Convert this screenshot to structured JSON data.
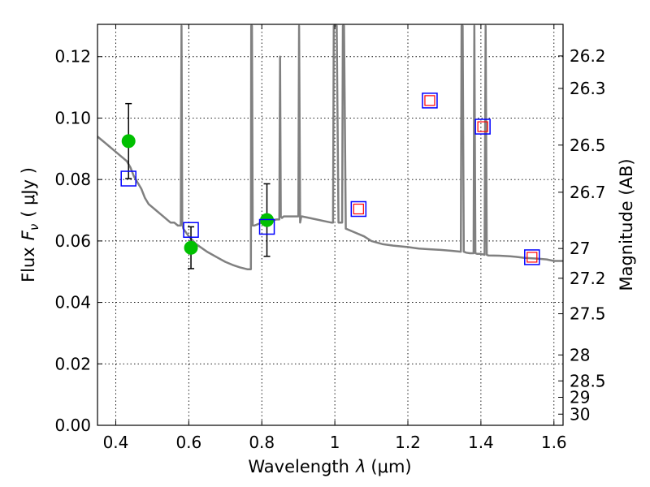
{
  "chart_data": {
    "type": "scatter",
    "xlabel": "Wavelength",
    "xlabel_symbol": "λ",
    "xlabel_unit": "(μm)",
    "ylabel": "Flux",
    "ylabel_symbol": "F",
    "ylabel_subscript": "ν",
    "ylabel_unit": "( μJy )",
    "y2label": "Magnitude (AB)",
    "xlim": [
      0.35,
      1.625
    ],
    "ylim": [
      0.0,
      0.1305
    ],
    "grid": true,
    "xticks": [
      {
        "value": 0.4,
        "label": "0.4"
      },
      {
        "value": 0.6,
        "label": "0.6"
      },
      {
        "value": 0.8,
        "label": "0.8"
      },
      {
        "value": 1.0,
        "label": "1"
      },
      {
        "value": 1.2,
        "label": "1.2"
      },
      {
        "value": 1.4,
        "label": "1.4"
      },
      {
        "value": 1.6,
        "label": "1.6"
      }
    ],
    "yticks": [
      {
        "value": 0.0,
        "label": "0.00"
      },
      {
        "value": 0.02,
        "label": "0.02"
      },
      {
        "value": 0.04,
        "label": "0.04"
      },
      {
        "value": 0.06,
        "label": "0.06"
      },
      {
        "value": 0.08,
        "label": "0.08"
      },
      {
        "value": 0.1,
        "label": "0.10"
      },
      {
        "value": 0.12,
        "label": "0.12"
      }
    ],
    "y2ticks": [
      {
        "value": 26.2,
        "label": "26.2"
      },
      {
        "value": 26.3,
        "label": "26.3"
      },
      {
        "value": 26.5,
        "label": "26.5"
      },
      {
        "value": 26.7,
        "label": "26.7"
      },
      {
        "value": 27.0,
        "label": "27"
      },
      {
        "value": 27.2,
        "label": "27.2"
      },
      {
        "value": 27.5,
        "label": "27.5"
      },
      {
        "value": 28.0,
        "label": "28"
      },
      {
        "value": 28.5,
        "label": "28.5"
      },
      {
        "value": 29.0,
        "label": "29"
      },
      {
        "value": 30.0,
        "label": "30"
      }
    ],
    "series": [
      {
        "name": "SED model",
        "kind": "line",
        "color": "#808080",
        "x": [
          0.35,
          0.36,
          0.37,
          0.38,
          0.39,
          0.4,
          0.41,
          0.42,
          0.43,
          0.44,
          0.45,
          0.46,
          0.47,
          0.48,
          0.49,
          0.5,
          0.51,
          0.52,
          0.53,
          0.54,
          0.55,
          0.56,
          0.57,
          0.578,
          0.58,
          0.582,
          0.585,
          0.6,
          0.62,
          0.65,
          0.68,
          0.7,
          0.72,
          0.74,
          0.76,
          0.77,
          0.771,
          0.773,
          0.775,
          0.78,
          0.8,
          0.82,
          0.84,
          0.848,
          0.85,
          0.852,
          0.855,
          0.86,
          0.88,
          0.9,
          0.902,
          0.905,
          0.908,
          0.91,
          0.93,
          0.95,
          0.97,
          0.99,
          0.995,
          0.997,
          1.0,
          1.005,
          1.01,
          1.02,
          1.022,
          1.025,
          1.03,
          1.05,
          1.08,
          1.1,
          1.13,
          1.16,
          1.2,
          1.23,
          1.26,
          1.29,
          1.32,
          1.345,
          1.347,
          1.35,
          1.353,
          1.36,
          1.37,
          1.38,
          1.382,
          1.385,
          1.39,
          1.4,
          1.41,
          1.413,
          1.416,
          1.42,
          1.45,
          1.48,
          1.5,
          1.52,
          1.55,
          1.58,
          1.6,
          1.625
        ],
        "y": [
          0.094,
          0.093,
          0.092,
          0.091,
          0.09,
          0.089,
          0.088,
          0.087,
          0.086,
          0.084,
          0.081,
          0.079,
          0.077,
          0.074,
          0.072,
          0.071,
          0.07,
          0.069,
          0.068,
          0.067,
          0.066,
          0.066,
          0.065,
          0.065,
          0.13,
          0.066,
          0.064,
          0.0615,
          0.059,
          0.0565,
          0.0545,
          0.0532,
          0.0522,
          0.0514,
          0.0508,
          0.0508,
          0.13,
          0.13,
          0.065,
          0.065,
          0.066,
          0.0665,
          0.067,
          0.067,
          0.12,
          0.068,
          0.0675,
          0.068,
          0.068,
          0.068,
          0.13,
          0.066,
          0.068,
          0.068,
          0.0675,
          0.067,
          0.0665,
          0.066,
          0.066,
          0.13,
          0.13,
          0.13,
          0.066,
          0.066,
          0.13,
          0.13,
          0.064,
          0.063,
          0.0615,
          0.06,
          0.059,
          0.0585,
          0.058,
          0.0575,
          0.0573,
          0.0571,
          0.0568,
          0.0565,
          0.13,
          0.13,
          0.0565,
          0.0562,
          0.056,
          0.056,
          0.13,
          0.056,
          0.0558,
          0.0558,
          0.0555,
          0.13,
          0.0555,
          0.0553,
          0.0552,
          0.055,
          0.0548,
          0.0545,
          0.0543,
          0.054,
          0.0535,
          0.0535
        ]
      },
      {
        "name": "Observed photometry",
        "kind": "points_errorbars",
        "color": "#00c000",
        "x": [
          0.435,
          0.606,
          0.814
        ],
        "y": [
          0.0925,
          0.0578,
          0.0668
        ],
        "yerr": [
          0.0122,
          0.0068,
          0.0118
        ]
      },
      {
        "name": "Model band flux (blue)",
        "kind": "open_squares",
        "color": "#0000ff",
        "x": [
          0.435,
          0.606,
          0.814,
          1.065,
          1.26,
          1.405,
          1.54
        ],
        "y": [
          0.0803,
          0.0636,
          0.0646,
          0.0704,
          0.1057,
          0.0972,
          0.0547
        ]
      },
      {
        "name": "Model band flux (red)",
        "kind": "open_squares_small",
        "color": "#ff0000",
        "x": [
          1.065,
          1.26,
          1.405,
          1.54
        ],
        "y": [
          0.0704,
          0.1057,
          0.0972,
          0.0547
        ]
      }
    ]
  }
}
